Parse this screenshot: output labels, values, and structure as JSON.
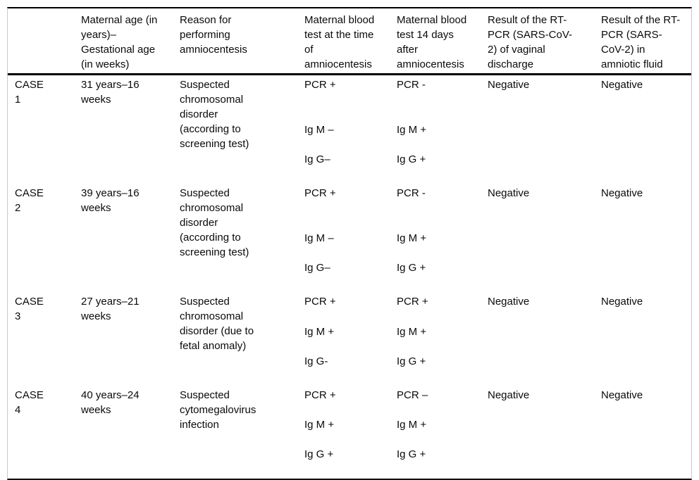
{
  "table": {
    "headers": [
      "",
      "Maternal age (in\nyears)–\nGestational age\n(in weeks)",
      "Reason for\nperforming\namniocentesis",
      "Maternal blood\ntest at the time\nof\namniocentesis",
      "Maternal blood\ntest 14 days\nafter\namniocentesis",
      "Result of the RT-\nPCR (SARS-CoV-\n2) of vaginal\ndischarge",
      "Result of the RT-\nPCR (SARS-\nCoV-2) in\namniotic fluid"
    ],
    "rows": [
      {
        "label": "CASE\n1",
        "age": "31 years–16\nweeks",
        "reason": "Suspected\nchromosomal\ndisorder\n(according to\nscreening test)",
        "blood_at_amnio": {
          "pcr": "PCR +",
          "igm": "Ig M –",
          "igg": "Ig G–"
        },
        "blood_14d_after": {
          "pcr": "PCR -",
          "igm": "Ig M +",
          "igg": "Ig G +"
        },
        "vaginal_discharge": "Negative",
        "amniotic_fluid": "Negative"
      },
      {
        "label": "CASE\n2",
        "age": "39 years–16\nweeks",
        "reason": "Suspected\nchromosomal\ndisorder\n(according to\nscreening test)",
        "blood_at_amnio": {
          "pcr": "PCR +",
          "igm": "Ig M –",
          "igg": "Ig G–"
        },
        "blood_14d_after": {
          "pcr": "PCR -",
          "igm": "Ig M +",
          "igg": "Ig G +"
        },
        "vaginal_discharge": "Negative",
        "amniotic_fluid": "Negative"
      },
      {
        "label": "CASE\n3",
        "age": "27 years–21\nweeks",
        "reason": "Suspected\nchromosomal\ndisorder (due to\nfetal anomaly)",
        "blood_at_amnio": {
          "pcr": "PCR +",
          "igm": "Ig M +",
          "igg": "Ig G-"
        },
        "blood_14d_after": {
          "pcr": "PCR +",
          "igm": "Ig M +",
          "igg": "Ig G +"
        },
        "vaginal_discharge": "Negative",
        "amniotic_fluid": "Negative"
      },
      {
        "label": "CASE\n4",
        "age": "40 years–24\nweeks",
        "reason": "Suspected\ncytomegalovirus\ninfection",
        "blood_at_amnio": {
          "pcr": "PCR +",
          "igm": "Ig M +",
          "igg": "Ig G +"
        },
        "blood_14d_after": {
          "pcr": "PCR –",
          "igm": "Ig M +",
          "igg": "Ig G +"
        },
        "vaginal_discharge": "Negative",
        "amniotic_fluid": "Negative"
      }
    ],
    "border_colors": {
      "rule": "#000000",
      "side": "#c9c9c9"
    }
  }
}
